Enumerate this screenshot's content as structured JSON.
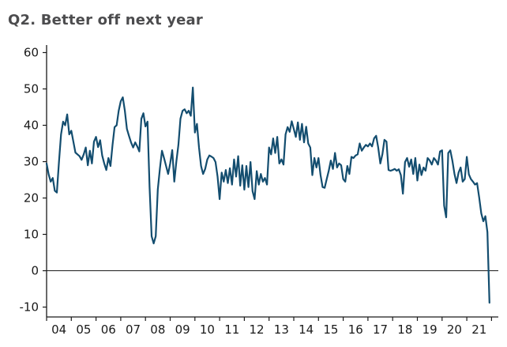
{
  "title": "Q2. Better off next year",
  "chart_data": {
    "type": "line",
    "title": "Q2. Better off next year",
    "frequency": "monthly",
    "x_start": "2004-01",
    "x_end": "2021-12",
    "x_tick_labels": [
      "04",
      "05",
      "06",
      "07",
      "08",
      "09",
      "10",
      "11",
      "12",
      "13",
      "14",
      "15",
      "16",
      "17",
      "18",
      "19",
      "20",
      "21"
    ],
    "y_ticks": [
      60,
      50,
      40,
      30,
      20,
      10,
      0,
      -10
    ],
    "ylim": [
      -13,
      62
    ],
    "zero_line": true,
    "grid": false,
    "legend": "none",
    "series": [
      {
        "name": "Better off next year (balance)",
        "values": [
          29.5,
          26.5,
          24.5,
          25.5,
          22.0,
          21.5,
          30.0,
          37.5,
          41.0,
          40.0,
          43.0,
          37.5,
          38.5,
          35.5,
          32.5,
          32.0,
          31.5,
          30.5,
          32.0,
          33.9,
          29.0,
          33.0,
          29.5,
          35.5,
          36.8,
          34.0,
          35.9,
          31.7,
          29.5,
          27.7,
          31.0,
          28.8,
          34.6,
          39.5,
          40.0,
          44.0,
          46.6,
          47.7,
          44.0,
          39.0,
          37.1,
          35.3,
          33.9,
          35.3,
          34.2,
          32.8,
          41.8,
          43.3,
          39.7,
          41.0,
          23.0,
          9.5,
          7.5,
          9.5,
          22.3,
          28.1,
          33.0,
          31.0,
          28.8,
          26.6,
          29.5,
          33.2,
          24.5,
          30.0,
          34.6,
          41.8,
          44.0,
          44.4,
          43.3,
          44.0,
          42.6,
          50.4,
          38.0,
          40.4,
          33.9,
          28.8,
          26.6,
          28.0,
          30.6,
          31.7,
          31.4,
          31.0,
          29.9,
          25.9,
          19.7,
          27.0,
          24.5,
          27.7,
          24.1,
          28.2,
          23.7,
          30.6,
          25.9,
          31.5,
          23.4,
          29.0,
          22.3,
          28.8,
          23.0,
          29.9,
          21.9,
          19.7,
          27.4,
          23.7,
          26.6,
          24.5,
          25.5,
          23.7,
          33.9,
          32.0,
          36.4,
          32.4,
          36.8,
          29.5,
          30.6,
          29.2,
          37.5,
          39.5,
          38.2,
          41.1,
          39.0,
          36.8,
          40.8,
          36.0,
          40.4,
          35.3,
          39.6,
          35.0,
          33.9,
          26.3,
          31.0,
          28.4,
          31.0,
          26.3,
          23.0,
          22.8,
          25.2,
          27.5,
          30.3,
          28.0,
          32.4,
          28.4,
          29.5,
          29.0,
          25.2,
          24.5,
          28.8,
          26.6,
          31.3,
          31.0,
          31.7,
          32.0,
          35.0,
          33.0,
          33.9,
          34.6,
          34.2,
          35.0,
          34.2,
          36.4,
          37.1,
          33.9,
          29.5,
          32.0,
          36.0,
          35.5,
          27.7,
          27.5,
          27.7,
          28.0,
          27.5,
          27.9,
          26.3,
          21.2,
          29.9,
          31.0,
          28.6,
          30.6,
          26.6,
          31.0,
          24.8,
          29.2,
          26.3,
          28.4,
          27.5,
          31.0,
          30.3,
          29.2,
          31.0,
          30.3,
          29.2,
          32.8,
          33.1,
          17.9,
          14.7,
          32.4,
          33.1,
          30.3,
          26.6,
          24.1,
          27.0,
          28.4,
          24.5,
          25.2,
          31.3,
          26.5,
          25.2,
          24.5,
          23.7,
          24.1,
          20.1,
          15.8,
          13.6,
          15.0,
          10.6,
          -8.8
        ]
      }
    ],
    "colors": {
      "line": "#134d6f",
      "title": "#4c4c4e",
      "axis": "#1a1a1a",
      "background": "#ffffff"
    }
  }
}
